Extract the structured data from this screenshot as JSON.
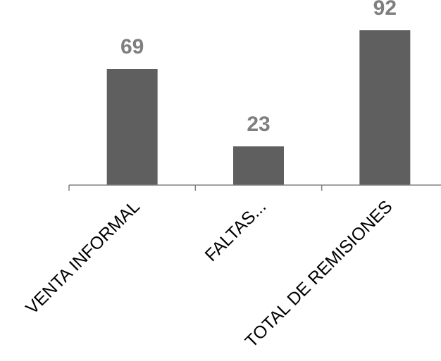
{
  "chart_data": {
    "type": "bar",
    "title": "",
    "xlabel": "",
    "ylabel": "",
    "categories": [
      "VENTA INFORMAL",
      "FALTAS...",
      "TOTAL DE REMISIONES"
    ],
    "values": [
      69,
      23,
      92
    ],
    "data_labels": [
      "69",
      "23",
      "92"
    ],
    "ylim": [
      0,
      92
    ],
    "grid": false,
    "legend": "none",
    "colors": {
      "bar": "#5f5f5f",
      "data_label": "#7f7f7f",
      "axis": "#808080",
      "tick_label": "#000000"
    }
  }
}
